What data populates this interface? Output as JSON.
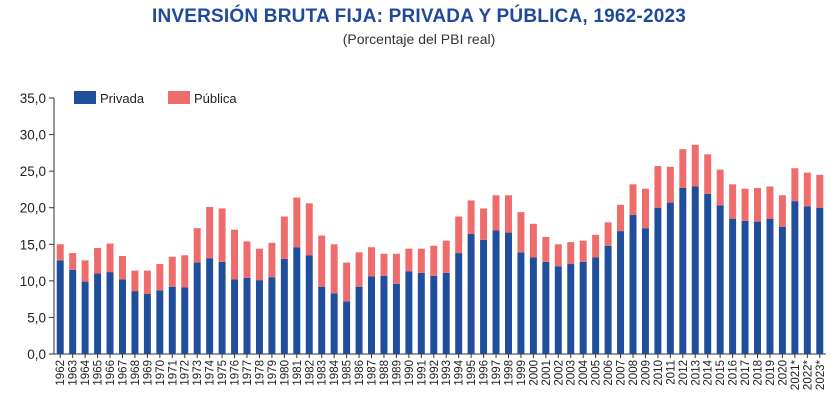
{
  "header": {
    "title": "INVERSIÓN BRUTA FIJA: PRIVADA Y PÚBLICA, 1962-2023",
    "subtitle": "(Porcentaje del PBI real)"
  },
  "colors": {
    "privada": "#1f4e9c",
    "publica": "#f06b6b",
    "title": "#1f4a9c",
    "axis": "#333333"
  },
  "chart_data": {
    "type": "bar",
    "stacked": true,
    "title": "INVERSIÓN BRUTA FIJA: PRIVADA Y PÚBLICA, 1962-2023",
    "subtitle": "(Porcentaje del PBI real)",
    "xlabel": "",
    "ylabel": "",
    "ylim": [
      0,
      35
    ],
    "y_ticks": [
      "0,0",
      "5,0",
      "10,0",
      "15,0",
      "20,0",
      "25,0",
      "30,0",
      "35,0"
    ],
    "grid": false,
    "legend_position": "top-left",
    "categories": [
      "1962",
      "1963",
      "1964",
      "1965",
      "1966",
      "1967",
      "1968",
      "1969",
      "1970",
      "1971",
      "1972",
      "1973",
      "1974",
      "1975",
      "1976",
      "1977",
      "1978",
      "1979",
      "1980",
      "1981",
      "1982",
      "1983",
      "1984",
      "1985",
      "1986",
      "1987",
      "1988",
      "1989",
      "1990",
      "1991",
      "1992",
      "1993",
      "1994",
      "1995",
      "1996",
      "1997",
      "1998",
      "1999",
      "2000",
      "2001",
      "2002",
      "2003",
      "2004",
      "2005",
      "2006",
      "2007",
      "2008",
      "2009",
      "2010",
      "2011",
      "2012",
      "2013",
      "2014",
      "2015",
      "2016",
      "2017",
      "2018",
      "2019",
      "2020",
      "2021*",
      "2022*",
      "2023*"
    ],
    "series": [
      {
        "name": "Privada",
        "color": "#1f4e9c",
        "values": [
          12.8,
          11.5,
          9.9,
          11.0,
          11.2,
          10.2,
          8.6,
          8.2,
          8.7,
          9.2,
          9.1,
          12.5,
          13.1,
          12.6,
          10.2,
          10.4,
          10.1,
          10.5,
          13.0,
          14.6,
          13.5,
          9.2,
          8.3,
          7.2,
          9.2,
          10.6,
          10.7,
          9.6,
          11.3,
          11.1,
          10.7,
          11.1,
          13.8,
          16.4,
          15.6,
          16.9,
          16.6,
          13.9,
          13.2,
          12.6,
          12.0,
          12.3,
          12.6,
          13.2,
          14.8,
          16.8,
          19.0,
          17.2,
          20.0,
          20.7,
          22.7,
          22.9,
          21.9,
          20.3,
          18.5,
          18.2,
          18.1,
          18.5,
          17.4,
          20.9,
          20.2,
          20.0
        ]
      },
      {
        "name": "Pública",
        "color": "#f06b6b",
        "values": [
          2.2,
          2.3,
          2.9,
          3.5,
          3.9,
          3.2,
          2.8,
          3.2,
          3.6,
          4.1,
          4.4,
          4.7,
          7.0,
          7.3,
          6.8,
          5.0,
          4.3,
          4.7,
          5.8,
          6.8,
          7.1,
          7.0,
          6.7,
          5.3,
          4.7,
          4.0,
          3.0,
          4.1,
          3.1,
          3.3,
          4.1,
          4.4,
          5.0,
          4.6,
          4.3,
          4.8,
          5.1,
          5.5,
          4.6,
          3.4,
          3.0,
          3.0,
          2.9,
          3.1,
          3.2,
          3.6,
          4.2,
          5.4,
          5.7,
          4.9,
          5.3,
          5.7,
          5.4,
          4.9,
          4.7,
          4.4,
          4.6,
          4.4,
          4.3,
          4.5,
          4.6,
          4.5
        ]
      }
    ]
  }
}
